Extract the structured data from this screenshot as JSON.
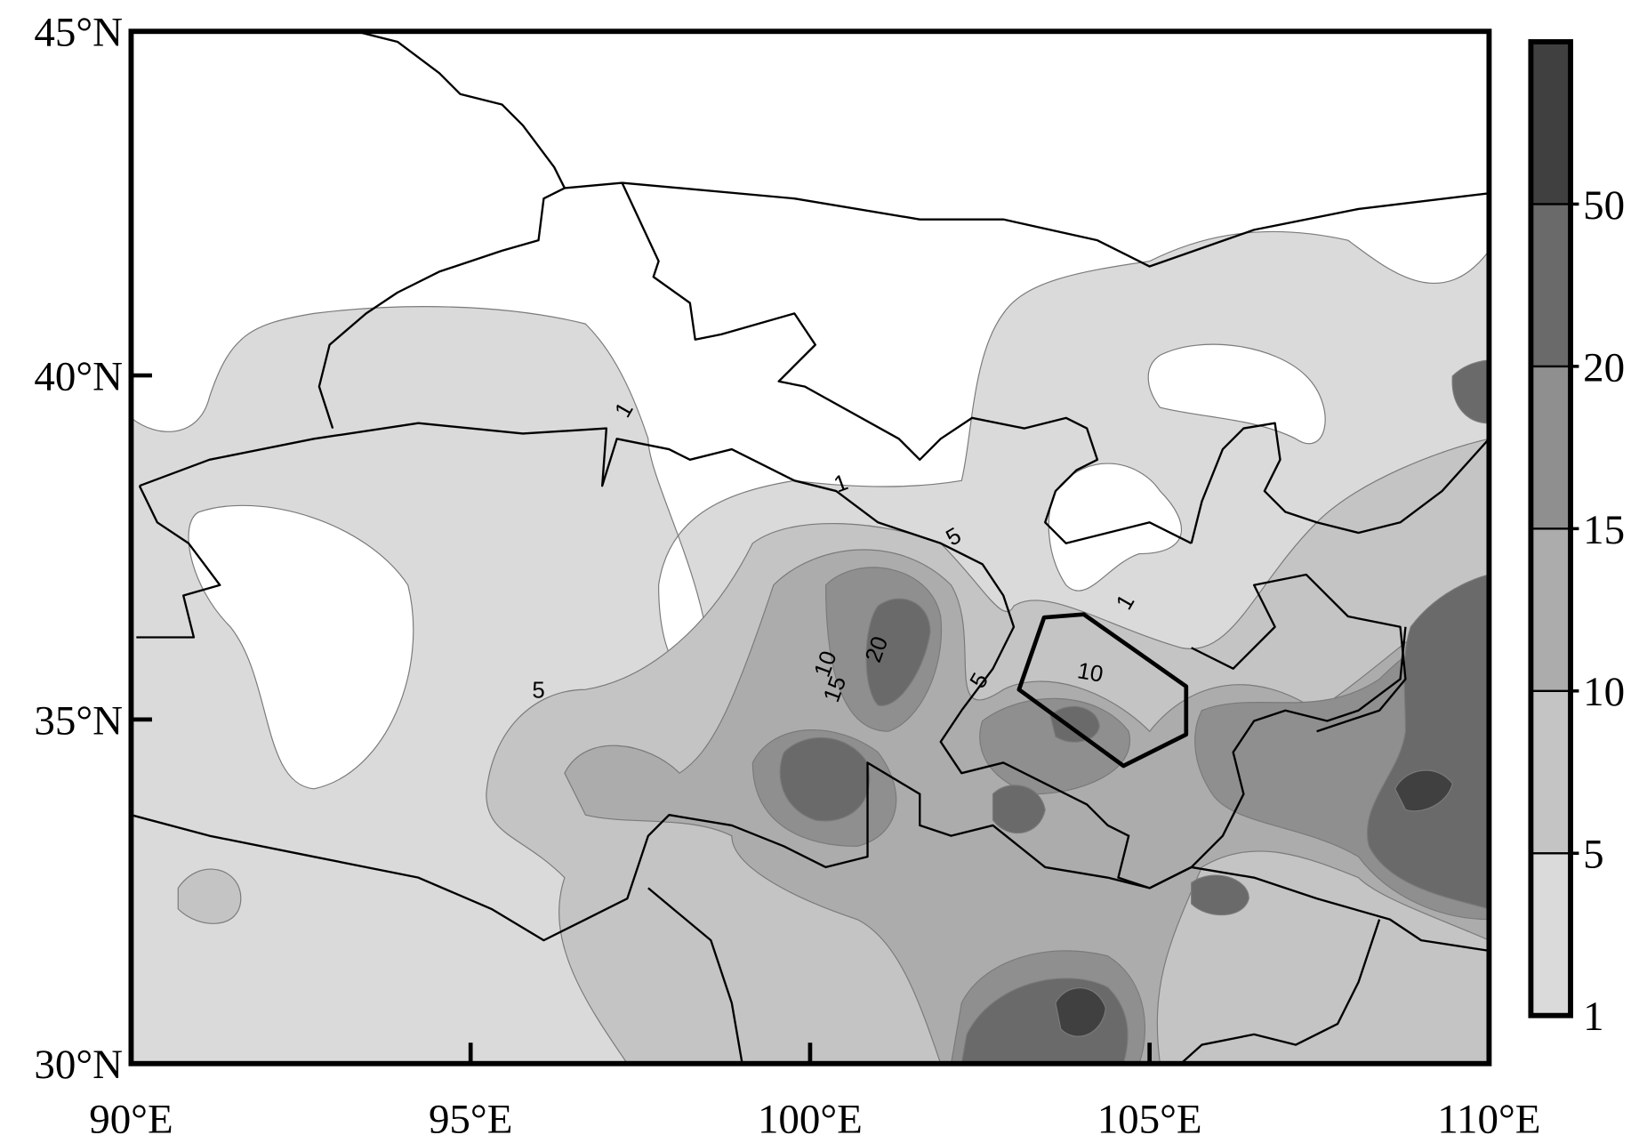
{
  "map": {
    "lat_ticks": [
      {
        "value": 45,
        "label": "45°N"
      },
      {
        "value": 40,
        "label": "40°N"
      },
      {
        "value": 35,
        "label": "35°N"
      },
      {
        "value": 30,
        "label": "30°N"
      }
    ],
    "lon_ticks": [
      {
        "value": 90,
        "label": "90°E"
      },
      {
        "value": 95,
        "label": "95°E"
      },
      {
        "value": 100,
        "label": "100°E"
      },
      {
        "value": 105,
        "label": "105°E"
      },
      {
        "value": 110,
        "label": "110°E"
      }
    ],
    "colorbar": {
      "levels": [
        1,
        5,
        10,
        15,
        20,
        50
      ],
      "colors": [
        "#dadada",
        "#c4c4c4",
        "#acacac",
        "#8f8f8f",
        "#6a6a6a",
        "#404040"
      ]
    },
    "contour_labels": [
      "1",
      "1",
      "1",
      "5",
      "5",
      "5",
      "10",
      "15",
      "20",
      "10"
    ]
  }
}
